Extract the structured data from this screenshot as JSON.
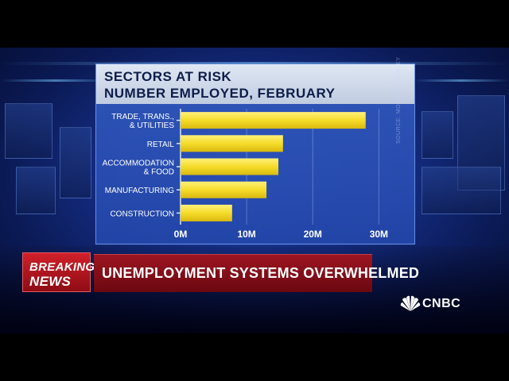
{
  "chart_data": {
    "type": "bar",
    "orientation": "horizontal",
    "title": "SECTORS AT RISK",
    "subtitle": "NUMBER EMPLOYED, FEBRUARY",
    "categories": [
      [
        "TRADE, TRANS.,",
        "& UTILITIES"
      ],
      [
        "RETAIL"
      ],
      [
        "ACCOMMODATION",
        "& FOOD"
      ],
      [
        "MANUFACTURING"
      ],
      [
        "CONSTRUCTION"
      ]
    ],
    "values": [
      28,
      15.5,
      14.8,
      13,
      7.8
    ],
    "value_unit": "M",
    "xlim": [
      0,
      32
    ],
    "x_ticks": [
      0,
      10,
      20,
      30
    ],
    "x_tick_labels": [
      "0M",
      "10M",
      "20M",
      "30M"
    ],
    "grid": true,
    "bar_color": "#f5dc2a",
    "source": "SOURCE: MORGAN STANLEY"
  },
  "lower_third": {
    "breaking": "BREAKING",
    "news": "NEWS",
    "headline": "UNEMPLOYMENT SYSTEMS OVERWHELMED"
  },
  "network": {
    "logo_text": "CNBC",
    "logo_icon": "peacock-icon"
  },
  "colors": {
    "panel_blue": "#2f5bc0",
    "header_gray": "#cfd8e8",
    "breaking_red": "#c81b25",
    "headline_red": "#8b0f1a"
  }
}
